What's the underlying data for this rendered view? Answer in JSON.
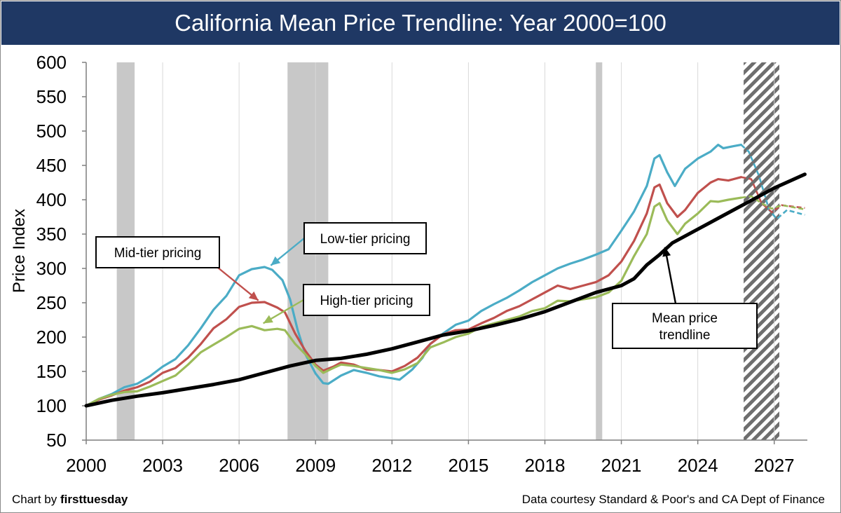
{
  "header": {
    "title": "California Mean Price Trendline: Year 2000=100"
  },
  "footer": {
    "credit_prefix": "Chart by ",
    "credit_brand": "firsttuesday",
    "source": "Data courtesy Standard & Poor's and CA Dept of Finance"
  },
  "chart_data": {
    "type": "line",
    "title": "California Mean Price Trendline: Year 2000=100",
    "ylabel": "Price Index",
    "xlabel": "",
    "xlim": [
      2000,
      2028.3
    ],
    "ylim": [
      50,
      600
    ],
    "x_ticks": [
      "2000",
      "2003",
      "2006",
      "2009",
      "2012",
      "2015",
      "2018",
      "2021",
      "2024",
      "2027"
    ],
    "y_ticks": [
      "50",
      "100",
      "150",
      "200",
      "250",
      "300",
      "350",
      "400",
      "450",
      "500",
      "550",
      "600"
    ],
    "grid": "vertical",
    "recessions": [
      [
        2001.2,
        2001.9
      ],
      [
        2007.9,
        2009.5
      ],
      [
        2020.0,
        2020.25
      ]
    ],
    "forecast_band": [
      2025.8,
      2027.2
    ],
    "series": [
      {
        "name": "Low-tier pricing",
        "color": "#4bacc6",
        "points": [
          [
            2000,
            100
          ],
          [
            2000.5,
            110
          ],
          [
            2001,
            117
          ],
          [
            2001.5,
            127
          ],
          [
            2002,
            132
          ],
          [
            2002.5,
            143
          ],
          [
            2003,
            157
          ],
          [
            2003.5,
            168
          ],
          [
            2004,
            188
          ],
          [
            2004.5,
            213
          ],
          [
            2005,
            240
          ],
          [
            2005.5,
            260
          ],
          [
            2006,
            290
          ],
          [
            2006.5,
            299
          ],
          [
            2007,
            302
          ],
          [
            2007.3,
            298
          ],
          [
            2007.7,
            283
          ],
          [
            2008,
            255
          ],
          [
            2008.3,
            210
          ],
          [
            2008.6,
            175
          ],
          [
            2009,
            147
          ],
          [
            2009.3,
            133
          ],
          [
            2009.5,
            132
          ],
          [
            2010,
            144
          ],
          [
            2010.5,
            152
          ],
          [
            2011,
            148
          ],
          [
            2011.5,
            143
          ],
          [
            2012,
            140
          ],
          [
            2012.3,
            138
          ],
          [
            2012.8,
            153
          ],
          [
            2013.2,
            170
          ],
          [
            2013.5,
            190
          ],
          [
            2014,
            205
          ],
          [
            2014.5,
            218
          ],
          [
            2015,
            224
          ],
          [
            2015.5,
            238
          ],
          [
            2016,
            248
          ],
          [
            2016.5,
            257
          ],
          [
            2017,
            268
          ],
          [
            2017.5,
            280
          ],
          [
            2018,
            290
          ],
          [
            2018.5,
            300
          ],
          [
            2019,
            307
          ],
          [
            2019.5,
            313
          ],
          [
            2020,
            320
          ],
          [
            2020.5,
            328
          ],
          [
            2021,
            355
          ],
          [
            2021.5,
            383
          ],
          [
            2022,
            420
          ],
          [
            2022.3,
            460
          ],
          [
            2022.5,
            465
          ],
          [
            2022.8,
            440
          ],
          [
            2023.1,
            420
          ],
          [
            2023.5,
            445
          ],
          [
            2024,
            460
          ],
          [
            2024.5,
            470
          ],
          [
            2024.8,
            480
          ],
          [
            2025,
            475
          ],
          [
            2025.4,
            478
          ],
          [
            2025.7,
            480
          ]
        ],
        "forecast": [
          [
            2025.7,
            480
          ],
          [
            2026,
            470
          ],
          [
            2026.4,
            435
          ],
          [
            2026.8,
            385
          ],
          [
            2027.1,
            372
          ],
          [
            2027.5,
            385
          ],
          [
            2028.2,
            378
          ]
        ]
      },
      {
        "name": "Mid-tier pricing",
        "color": "#c0504d",
        "points": [
          [
            2000,
            100
          ],
          [
            2000.5,
            109
          ],
          [
            2001,
            115
          ],
          [
            2001.5,
            122
          ],
          [
            2002,
            127
          ],
          [
            2002.5,
            135
          ],
          [
            2003,
            148
          ],
          [
            2003.5,
            155
          ],
          [
            2004,
            170
          ],
          [
            2004.5,
            190
          ],
          [
            2005,
            213
          ],
          [
            2005.5,
            226
          ],
          [
            2006,
            244
          ],
          [
            2006.5,
            250
          ],
          [
            2007,
            251
          ],
          [
            2007.5,
            243
          ],
          [
            2007.8,
            236
          ],
          [
            2008.2,
            205
          ],
          [
            2008.6,
            180
          ],
          [
            2009,
            160
          ],
          [
            2009.3,
            151
          ],
          [
            2009.7,
            157
          ],
          [
            2010,
            163
          ],
          [
            2010.5,
            160
          ],
          [
            2011,
            153
          ],
          [
            2011.5,
            152
          ],
          [
            2012,
            150
          ],
          [
            2012.5,
            158
          ],
          [
            2013,
            170
          ],
          [
            2013.5,
            190
          ],
          [
            2014,
            204
          ],
          [
            2014.5,
            210
          ],
          [
            2015,
            211
          ],
          [
            2015.5,
            220
          ],
          [
            2016,
            228
          ],
          [
            2016.5,
            238
          ],
          [
            2017,
            245
          ],
          [
            2017.5,
            255
          ],
          [
            2018,
            265
          ],
          [
            2018.5,
            275
          ],
          [
            2019,
            270
          ],
          [
            2019.5,
            275
          ],
          [
            2020,
            280
          ],
          [
            2020.5,
            290
          ],
          [
            2021,
            310
          ],
          [
            2021.5,
            340
          ],
          [
            2022,
            380
          ],
          [
            2022.3,
            418
          ],
          [
            2022.5,
            422
          ],
          [
            2022.8,
            395
          ],
          [
            2023.2,
            375
          ],
          [
            2023.5,
            385
          ],
          [
            2024,
            410
          ],
          [
            2024.5,
            425
          ],
          [
            2024.8,
            430
          ],
          [
            2025.2,
            428
          ],
          [
            2025.7,
            433
          ]
        ],
        "forecast": [
          [
            2025.7,
            433
          ],
          [
            2026.1,
            430
          ],
          [
            2026.5,
            395
          ],
          [
            2026.9,
            382
          ],
          [
            2027.3,
            392
          ],
          [
            2028.2,
            388
          ]
        ]
      },
      {
        "name": "High-tier pricing",
        "color": "#9bbb59",
        "points": [
          [
            2000,
            100
          ],
          [
            2000.5,
            110
          ],
          [
            2001,
            116
          ],
          [
            2001.5,
            120
          ],
          [
            2002,
            121
          ],
          [
            2002.5,
            128
          ],
          [
            2003,
            136
          ],
          [
            2003.5,
            144
          ],
          [
            2004,
            160
          ],
          [
            2004.5,
            178
          ],
          [
            2005,
            189
          ],
          [
            2005.5,
            200
          ],
          [
            2006,
            212
          ],
          [
            2006.5,
            216
          ],
          [
            2007,
            210
          ],
          [
            2007.5,
            212
          ],
          [
            2007.8,
            210
          ],
          [
            2008.2,
            190
          ],
          [
            2008.6,
            175
          ],
          [
            2009,
            158
          ],
          [
            2009.3,
            148
          ],
          [
            2009.7,
            155
          ],
          [
            2010,
            160
          ],
          [
            2010.5,
            158
          ],
          [
            2011,
            155
          ],
          [
            2011.5,
            152
          ],
          [
            2012,
            148
          ],
          [
            2012.5,
            153
          ],
          [
            2013,
            162
          ],
          [
            2013.5,
            185
          ],
          [
            2014,
            192
          ],
          [
            2014.5,
            200
          ],
          [
            2015,
            205
          ],
          [
            2015.5,
            215
          ],
          [
            2016,
            220
          ],
          [
            2016.5,
            225
          ],
          [
            2017,
            230
          ],
          [
            2017.5,
            238
          ],
          [
            2018,
            242
          ],
          [
            2018.5,
            253
          ],
          [
            2019,
            252
          ],
          [
            2019.5,
            255
          ],
          [
            2020,
            258
          ],
          [
            2020.5,
            265
          ],
          [
            2021,
            282
          ],
          [
            2021.5,
            318
          ],
          [
            2022,
            350
          ],
          [
            2022.3,
            390
          ],
          [
            2022.5,
            395
          ],
          [
            2022.8,
            370
          ],
          [
            2023.2,
            350
          ],
          [
            2023.5,
            365
          ],
          [
            2024,
            380
          ],
          [
            2024.5,
            398
          ],
          [
            2024.8,
            397
          ],
          [
            2025.2,
            400
          ],
          [
            2025.7,
            403
          ]
        ],
        "forecast": [
          [
            2025.7,
            403
          ],
          [
            2026.1,
            405
          ],
          [
            2026.5,
            395
          ],
          [
            2026.9,
            387
          ],
          [
            2027.3,
            392
          ],
          [
            2028.2,
            386
          ]
        ]
      },
      {
        "name": "Mean price trendline",
        "color": "#000000",
        "points": [
          [
            2000,
            100
          ],
          [
            2001,
            108
          ],
          [
            2002,
            114
          ],
          [
            2003,
            119
          ],
          [
            2004,
            125
          ],
          [
            2005,
            131
          ],
          [
            2006,
            138
          ],
          [
            2007,
            148
          ],
          [
            2008,
            158
          ],
          [
            2009,
            166
          ],
          [
            2010,
            169
          ],
          [
            2011,
            175
          ],
          [
            2012,
            183
          ],
          [
            2013,
            193
          ],
          [
            2014,
            203
          ],
          [
            2015,
            209
          ],
          [
            2016,
            217
          ],
          [
            2017,
            226
          ],
          [
            2018,
            237
          ],
          [
            2019,
            251
          ],
          [
            2020,
            265
          ],
          [
            2021,
            275
          ],
          [
            2021.5,
            285
          ],
          [
            2022,
            305
          ],
          [
            2022.5,
            320
          ],
          [
            2023,
            337
          ],
          [
            2024,
            357
          ],
          [
            2025,
            377
          ],
          [
            2026,
            397
          ],
          [
            2027,
            417
          ],
          [
            2028.2,
            437
          ]
        ]
      }
    ],
    "annotations": [
      {
        "text": "Mid-tier pricing",
        "series": "Mid-tier pricing",
        "arrow_to": [
          2006.8,
          252
        ]
      },
      {
        "text": "Low-tier pricing",
        "series": "Low-tier pricing",
        "arrow_to": [
          2007.2,
          303
        ]
      },
      {
        "text": "High-tier pricing",
        "series": "High-tier pricing",
        "arrow_to": [
          2006.9,
          219
        ]
      },
      {
        "text": "Mean price trendline",
        "text_lines": [
          "Mean price",
          "trendline"
        ],
        "series": "Mean price trendline",
        "arrow_to": [
          2022.7,
          333
        ]
      }
    ]
  }
}
